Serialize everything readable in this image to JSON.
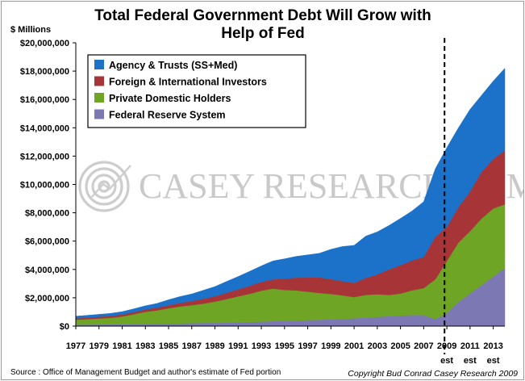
{
  "chart_data": {
    "type": "area",
    "stacked": true,
    "title_line1": "Total Federal Government Debt  Will Grow with",
    "title_line2": "Help of Fed",
    "ylabel": "$ Millions",
    "ylim": [
      0,
      20000000
    ],
    "ytick_step": 2000000,
    "ytick_labels": [
      "$0",
      "$2,000,000",
      "$4,000,000",
      "$6,000,000",
      "$8,000,000",
      "$10,000,000",
      "$12,000,000",
      "$14,000,000",
      "$16,000,000",
      "$18,000,000",
      "$20,000,000"
    ],
    "xlim": [
      1977,
      2014
    ],
    "x_tick_labels": [
      "1977",
      "1979",
      "1981",
      "1983",
      "1985",
      "1987",
      "1989",
      "1991",
      "1993",
      "1995",
      "1997",
      "1999",
      "2001",
      "2003",
      "2005",
      "2007",
      "2009",
      "2011",
      "2013"
    ],
    "est_labels": [
      {
        "year": 2009,
        "text": "est"
      },
      {
        "year": 2011,
        "text": "est"
      },
      {
        "year": 2013,
        "text": "est"
      }
    ],
    "projection_start_year": 2008.8,
    "x": [
      1977,
      1978,
      1979,
      1980,
      1981,
      1982,
      1983,
      1984,
      1985,
      1986,
      1987,
      1988,
      1989,
      1990,
      1991,
      1992,
      1993,
      1994,
      1995,
      1996,
      1997,
      1998,
      1999,
      2000,
      2001,
      2002,
      2003,
      2004,
      2005,
      2006,
      2007,
      2008,
      2009,
      2010,
      2011,
      2012,
      2013,
      2014
    ],
    "series": [
      {
        "name": "Federal Reserve System",
        "color": "#7b78b3",
        "values": [
          100000,
          110000,
          120000,
          125000,
          130000,
          140000,
          155000,
          160000,
          180000,
          190000,
          210000,
          230000,
          230000,
          240000,
          260000,
          290000,
          320000,
          350000,
          380000,
          400000,
          430000,
          450000,
          480000,
          520000,
          550000,
          600000,
          650000,
          700000,
          750000,
          780000,
          780000,
          500000,
          900000,
          1700000,
          2300000,
          2900000,
          3500000,
          4100000
        ]
      },
      {
        "name": "Private Domestic Holders",
        "color": "#6ea524",
        "values": [
          350000,
          380000,
          420000,
          460000,
          550000,
          700000,
          850000,
          950000,
          1080000,
          1200000,
          1270000,
          1360000,
          1500000,
          1670000,
          1840000,
          1990000,
          2180000,
          2300000,
          2170000,
          2120000,
          2000000,
          1890000,
          1790000,
          1650000,
          1500000,
          1600000,
          1600000,
          1500000,
          1550000,
          1750000,
          1900000,
          2800000,
          3700000,
          4200000,
          4400000,
          4700000,
          4800000,
          4500000
        ]
      },
      {
        "name": "Foreign & International Investors",
        "color": "#a73538",
        "values": [
          100000,
          110000,
          120000,
          130000,
          140000,
          150000,
          170000,
          190000,
          220000,
          250000,
          290000,
          340000,
          380000,
          440000,
          500000,
          560000,
          620000,
          650000,
          800000,
          900000,
          1000000,
          1100000,
          1050000,
          1000000,
          1000000,
          1200000,
          1400000,
          1800000,
          2000000,
          2100000,
          2200000,
          3000000,
          2400000,
          2500000,
          2800000,
          3300000,
          3500000,
          3800000
        ]
      },
      {
        "name": "Agency & Trusts (SS+Med)",
        "color": "#1b72c8",
        "values": [
          150000,
          160000,
          170000,
          185000,
          200000,
          230000,
          260000,
          300000,
          380000,
          450000,
          500000,
          600000,
          680000,
          800000,
          900000,
          1030000,
          1130000,
          1300000,
          1400000,
          1500000,
          1600000,
          1700000,
          2100000,
          2450000,
          2650000,
          2950000,
          3000000,
          3100000,
          3300000,
          3500000,
          3900000,
          4800000,
          5600000,
          5600000,
          5800000,
          5400000,
          5500000,
          5800000
        ]
      }
    ],
    "legend_order": [
      "Agency & Trusts (SS+Med)",
      "Foreign & International Investors",
      "Private Domestic Holders",
      "Federal Reserve System"
    ],
    "legend_position": "top-left",
    "grid": false
  },
  "watermark": "CASEY RESEARCH.COM",
  "footer": {
    "source": "Source : Office of Management Budget and author's estimate of  Fed portion",
    "copyright": "Copyright Bud Conrad Casey Research 2009"
  }
}
